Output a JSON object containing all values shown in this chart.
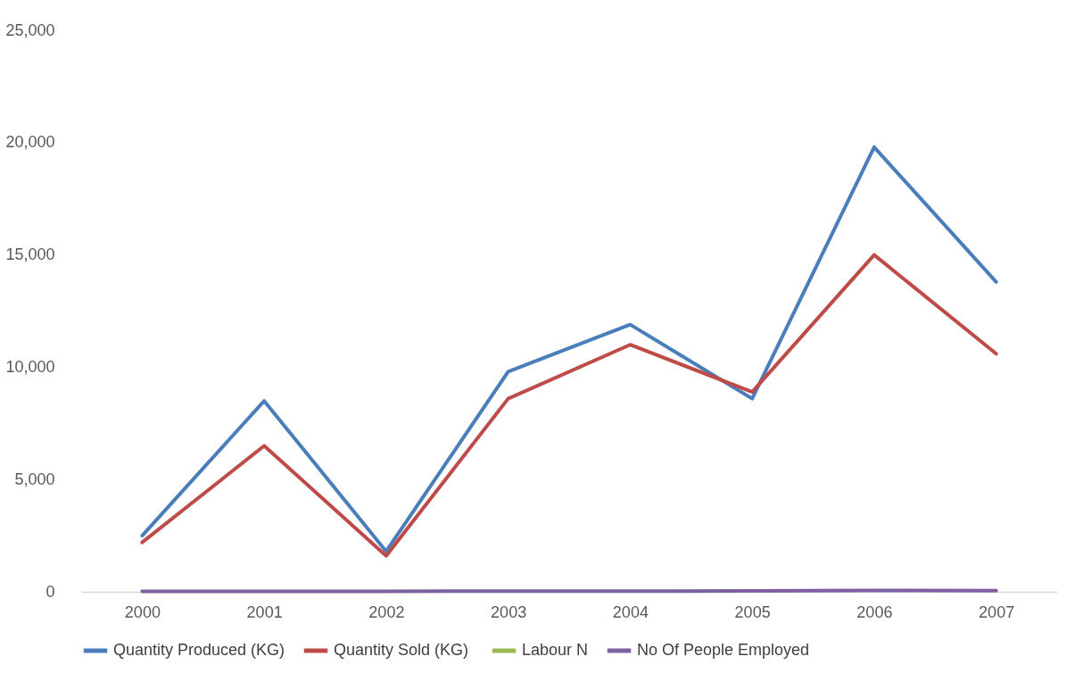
{
  "chart_data": {
    "type": "line",
    "categories": [
      "2000",
      "2001",
      "2002",
      "2003",
      "2004",
      "2005",
      "2006",
      "2007"
    ],
    "series": [
      {
        "name": "Quantity Produced (KG)",
        "color": "#4a7ebb",
        "values": [
          2500,
          8500,
          1800,
          9800,
          11900,
          8600,
          19800,
          13800
        ]
      },
      {
        "name": "Quantity Sold  (KG)",
        "color": "#be4b48",
        "values": [
          2200,
          6500,
          1600,
          8600,
          11000,
          8900,
          15000,
          10600
        ]
      },
      {
        "name": "Labour N",
        "color": "#98b954",
        "values": [
          null,
          null,
          null,
          null,
          null,
          null,
          null,
          null
        ]
      },
      {
        "name": "No Of People Employed",
        "color": "#7d60a0",
        "values": [
          20,
          20,
          20,
          30,
          30,
          40,
          60,
          50
        ]
      }
    ],
    "ylim": [
      0,
      25000
    ],
    "yticks": [
      0,
      {
        "value": 5000,
        "label": "5,000"
      },
      {
        "value": 10000,
        "label": "10,000"
      },
      {
        "value": 15000,
        "label": "15,000"
      },
      {
        "value": 20000,
        "label": "20,000"
      },
      {
        "value": 25000,
        "label": "25,000"
      }
    ],
    "grid": false,
    "legend": "bottom",
    "marker": "none",
    "line_style": "solid"
  }
}
